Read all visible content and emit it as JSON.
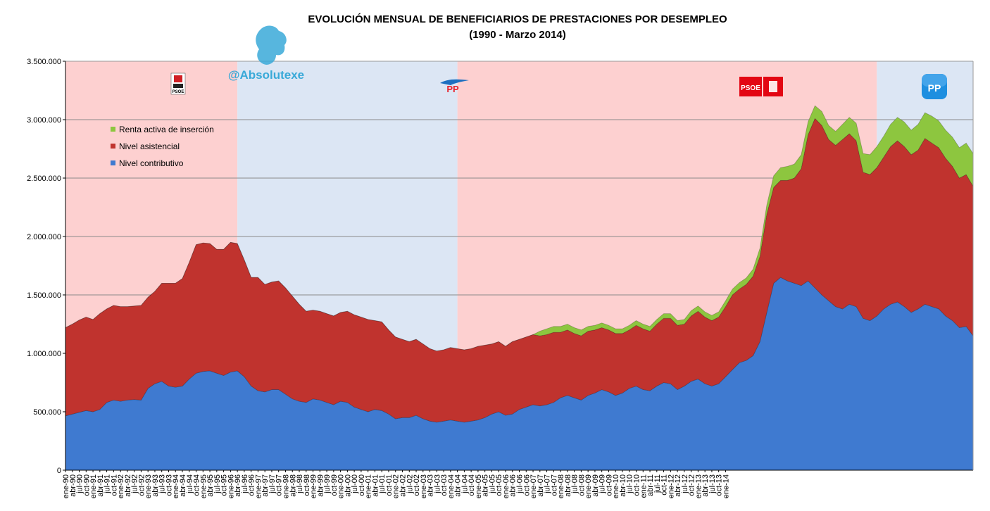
{
  "chart_data": {
    "type": "area",
    "title": "EVOLUCIÓN MENSUAL DE BENEFICIARIOS DE PRESTACIONES POR DESEMPLEO",
    "subtitle": "(1990 - Marzo 2014)",
    "stacked": true,
    "ylim": [
      0,
      3500000
    ],
    "yticks": [
      0,
      500000,
      1000000,
      1500000,
      2000000,
      2500000,
      3000000,
      3500000
    ],
    "ytick_labels": [
      "0",
      "500.000",
      "1.000.000",
      "1.500.000",
      "2.000.000",
      "2.500.000",
      "3.000.000",
      "3.500.000"
    ],
    "grid": "horizontal",
    "legend_position": "top-left",
    "x_start": "ene-90",
    "x_end": "mar-14",
    "x_tick_labels": [
      "ene-90",
      "abr-90",
      "jul-90",
      "oct-90",
      "ene-91",
      "abr-91",
      "jul-91",
      "oct-91",
      "ene-92",
      "abr-92",
      "jul-92",
      "oct-92",
      "ene-93",
      "abr-93",
      "jul-93",
      "oct-93",
      "ene-94",
      "abr-94",
      "jul-94",
      "oct-94",
      "ene-95",
      "abr-95",
      "jul-95",
      "oct-95",
      "ene-96",
      "abr-96",
      "jul-96",
      "oct-96",
      "ene-97",
      "abr-97",
      "jul-97",
      "oct-97",
      "ene-98",
      "abr-98",
      "jul-98",
      "oct-98",
      "ene-99",
      "abr-99",
      "jul-99",
      "oct-99",
      "ene-00",
      "abr-00",
      "jul-00",
      "oct-00",
      "ene-01",
      "abr-01",
      "jul-01",
      "oct-01",
      "ene-02",
      "abr-02",
      "jul-02",
      "oct-02",
      "ene-03",
      "abr-03",
      "jul-03",
      "oct-03",
      "ene-04",
      "abr-04",
      "jul-04",
      "oct-04",
      "ene-05",
      "abr-05",
      "jul-05",
      "oct-05",
      "ene-06",
      "abr-06",
      "jul-06",
      "oct-06",
      "ene-07",
      "abr-07",
      "jul-07",
      "oct-07",
      "ene-08",
      "abr-08",
      "jul-08",
      "oct-08",
      "ene-09",
      "abr-09",
      "jul-09",
      "oct-09",
      "ene-10",
      "abr-10",
      "jul-10",
      "oct-10",
      "ene-11",
      "abr-11",
      "jul-11",
      "oct-11",
      "ene-12",
      "abr-12",
      "jul-12",
      "oct-12",
      "ene-13",
      "abr-13",
      "jul-13",
      "oct-13",
      "ene-14"
    ],
    "series": [
      {
        "name": "Nivel contributivo",
        "color": "#3f7ad0",
        "values": [
          465000,
          480000,
          495000,
          510000,
          500000,
          520000,
          580000,
          600000,
          590000,
          600000,
          605000,
          600000,
          700000,
          740000,
          760000,
          720000,
          710000,
          720000,
          780000,
          830000,
          845000,
          850000,
          830000,
          810000,
          840000,
          850000,
          800000,
          720000,
          680000,
          670000,
          690000,
          690000,
          650000,
          610000,
          590000,
          580000,
          610000,
          600000,
          580000,
          560000,
          590000,
          580000,
          540000,
          520000,
          500000,
          520000,
          510000,
          480000,
          440000,
          450000,
          450000,
          470000,
          440000,
          420000,
          410000,
          420000,
          430000,
          420000,
          410000,
          420000,
          430000,
          450000,
          480000,
          500000,
          470000,
          480000,
          520000,
          540000,
          560000,
          550000,
          560000,
          580000,
          620000,
          640000,
          620000,
          600000,
          640000,
          660000,
          690000,
          670000,
          640000,
          660000,
          700000,
          720000,
          690000,
          680000,
          720000,
          750000,
          740000,
          690000,
          720000,
          760000,
          780000,
          740000,
          720000,
          740000,
          800000,
          860000,
          920000,
          940000,
          980000,
          1100000,
          1350000,
          1600000,
          1650000,
          1620000,
          1600000,
          1580000,
          1620000,
          1560000,
          1500000,
          1450000,
          1400000,
          1380000,
          1420000,
          1400000,
          1300000,
          1280000,
          1320000,
          1380000,
          1420000,
          1440000,
          1400000,
          1350000,
          1380000,
          1420000,
          1400000,
          1380000,
          1320000,
          1280000,
          1220000,
          1230000,
          1150000
        ],
        "x_index": [
          0,
          3,
          6,
          9,
          12,
          15,
          18,
          21,
          24,
          27,
          30,
          33,
          36,
          39,
          42,
          45,
          48,
          51,
          54,
          57,
          60,
          63,
          66,
          69,
          72,
          75,
          78,
          81,
          84,
          87,
          90,
          93,
          96,
          99,
          102,
          105,
          108,
          111,
          114,
          117,
          120,
          123,
          126,
          129,
          132,
          135,
          138,
          141,
          144,
          147,
          150,
          153,
          156,
          159,
          162,
          165,
          168,
          171,
          174,
          177,
          180,
          183,
          186,
          189,
          192,
          195,
          198,
          201,
          204,
          207,
          210,
          213,
          216,
          219,
          222,
          225,
          228,
          231,
          234,
          237,
          240,
          243,
          246,
          249,
          252,
          255,
          258,
          261,
          264,
          267,
          270,
          273,
          276,
          279,
          282,
          285,
          288,
          291,
          294,
          297,
          300,
          303,
          306,
          309,
          312,
          315,
          318,
          321,
          324,
          327,
          330,
          333,
          336,
          339,
          342,
          345,
          348,
          351,
          354,
          357,
          360,
          363,
          366,
          369,
          372,
          375,
          378,
          381,
          384,
          387,
          390,
          393,
          396
        ]
      },
      {
        "name": "Nivel asistencial",
        "color": "#c0332e",
        "values": [
          755000,
          770000,
          790000,
          800000,
          790000,
          820000,
          800000,
          810000,
          810000,
          800000,
          800000,
          810000,
          780000,
          790000,
          840000,
          880000,
          890000,
          920000,
          1000000,
          1100000,
          1100000,
          1090000,
          1060000,
          1080000,
          1110000,
          1090000,
          1000000,
          930000,
          970000,
          920000,
          920000,
          930000,
          910000,
          880000,
          830000,
          780000,
          760000,
          760000,
          760000,
          760000,
          760000,
          780000,
          790000,
          790000,
          790000,
          760000,
          760000,
          720000,
          700000,
          670000,
          650000,
          650000,
          640000,
          620000,
          610000,
          610000,
          620000,
          620000,
          620000,
          620000,
          630000,
          620000,
          600000,
          600000,
          590000,
          620000,
          600000,
          600000,
          600000,
          600000,
          600000,
          600000,
          560000,
          560000,
          550000,
          550000,
          550000,
          540000,
          530000,
          530000,
          530000,
          510000,
          500000,
          520000,
          520000,
          510000,
          530000,
          550000,
          560000,
          550000,
          530000,
          560000,
          580000,
          570000,
          560000,
          570000,
          600000,
          640000,
          630000,
          650000,
          680000,
          730000,
          840000,
          820000,
          830000,
          860000,
          900000,
          1000000,
          1250000,
          1450000,
          1450000,
          1380000,
          1380000,
          1450000,
          1460000,
          1420000,
          1250000,
          1250000,
          1270000,
          1300000,
          1350000,
          1380000,
          1370000,
          1350000,
          1360000,
          1420000,
          1400000,
          1380000,
          1350000,
          1320000,
          1280000,
          1300000,
          1280000
        ],
        "x_index": [
          0,
          3,
          6,
          9,
          12,
          15,
          18,
          21,
          24,
          27,
          30,
          33,
          36,
          39,
          42,
          45,
          48,
          51,
          54,
          57,
          60,
          63,
          66,
          69,
          72,
          75,
          78,
          81,
          84,
          87,
          90,
          93,
          96,
          99,
          102,
          105,
          108,
          111,
          114,
          117,
          120,
          123,
          126,
          129,
          132,
          135,
          138,
          141,
          144,
          147,
          150,
          153,
          156,
          159,
          162,
          165,
          168,
          171,
          174,
          177,
          180,
          183,
          186,
          189,
          192,
          195,
          198,
          201,
          204,
          207,
          210,
          213,
          216,
          219,
          222,
          225,
          228,
          231,
          234,
          237,
          240,
          243,
          246,
          249,
          252,
          255,
          258,
          261,
          264,
          267,
          270,
          273,
          276,
          279,
          282,
          285,
          288,
          291,
          294,
          297,
          300,
          303,
          306,
          309,
          312,
          315,
          318,
          321,
          324,
          327,
          330,
          333,
          336,
          339,
          342,
          345,
          348,
          351,
          354,
          357,
          360,
          363,
          366,
          369,
          372,
          375,
          378,
          381,
          384,
          387,
          390,
          393,
          396
        ]
      },
      {
        "name": "Renta activa de inserción",
        "color": "#8dc63f",
        "values": [
          0,
          0,
          0,
          0,
          0,
          0,
          0,
          0,
          0,
          0,
          0,
          0,
          0,
          0,
          0,
          0,
          0,
          0,
          0,
          0,
          0,
          0,
          0,
          0,
          0,
          0,
          0,
          0,
          0,
          0,
          0,
          0,
          0,
          0,
          0,
          0,
          0,
          0,
          0,
          0,
          0,
          0,
          0,
          0,
          0,
          0,
          0,
          0,
          0,
          0,
          0,
          0,
          0,
          0,
          0,
          0,
          0,
          0,
          0,
          0,
          0,
          0,
          0,
          0,
          0,
          0,
          0,
          0,
          0,
          40000,
          50000,
          50000,
          50000,
          50000,
          50000,
          50000,
          40000,
          40000,
          40000,
          40000,
          40000,
          40000,
          40000,
          40000,
          40000,
          40000,
          40000,
          40000,
          40000,
          40000,
          40000,
          45000,
          45000,
          45000,
          45000,
          45000,
          50000,
          50000,
          55000,
          55000,
          60000,
          70000,
          80000,
          100000,
          110000,
          120000,
          120000,
          120000,
          110000,
          110000,
          120000,
          120000,
          120000,
          130000,
          140000,
          150000,
          160000,
          170000,
          180000,
          180000,
          190000,
          200000,
          210000,
          210000,
          220000,
          220000,
          230000,
          230000,
          240000,
          250000,
          260000,
          270000,
          280000
        ],
        "x_index": [
          0,
          3,
          6,
          9,
          12,
          15,
          18,
          21,
          24,
          27,
          30,
          33,
          36,
          39,
          42,
          45,
          48,
          51,
          54,
          57,
          60,
          63,
          66,
          69,
          72,
          75,
          78,
          81,
          84,
          87,
          90,
          93,
          96,
          99,
          102,
          105,
          108,
          111,
          114,
          117,
          120,
          123,
          126,
          129,
          132,
          135,
          138,
          141,
          144,
          147,
          150,
          153,
          156,
          159,
          162,
          165,
          168,
          171,
          174,
          177,
          180,
          183,
          186,
          189,
          192,
          195,
          198,
          201,
          204,
          207,
          210,
          213,
          216,
          219,
          222,
          225,
          228,
          231,
          234,
          237,
          240,
          243,
          246,
          249,
          252,
          255,
          258,
          261,
          264,
          267,
          270,
          273,
          276,
          279,
          282,
          285,
          288,
          291,
          294,
          297,
          300,
          303,
          306,
          309,
          312,
          315,
          318,
          321,
          324,
          327,
          330,
          333,
          336,
          339,
          342,
          345,
          348,
          351,
          354,
          357,
          360,
          363,
          366,
          369,
          372,
          375,
          378,
          381,
          384,
          387,
          390,
          393,
          396
        ]
      }
    ],
    "legend": [
      {
        "label": "Renta activa de inserción",
        "color": "#8dc63f"
      },
      {
        "label": "Nivel asistencial",
        "color": "#c0332e"
      },
      {
        "label": "Nivel contributivo",
        "color": "#3f7ad0"
      }
    ],
    "periods": [
      {
        "party": "PSOE",
        "from_index": 0,
        "to_index": 75,
        "color": "#fdd0d0"
      },
      {
        "party": "PP",
        "from_index": 75,
        "to_index": 171,
        "color": "#dce6f4"
      },
      {
        "party": "PSOE",
        "from_index": 171,
        "to_index": 354,
        "color": "#fdd0d0"
      },
      {
        "party": "PP",
        "from_index": 354,
        "to_index": 396,
        "color": "#dce6f4"
      }
    ]
  },
  "watermark": {
    "handle": "@Absolutexe"
  },
  "logos": [
    {
      "name": "psoe-logo-1",
      "text": "PSOE"
    },
    {
      "name": "pp-logo-1",
      "text": "PP"
    },
    {
      "name": "psoe-logo-2",
      "text": "PSOE"
    },
    {
      "name": "pp-logo-2",
      "text": "PP"
    }
  ]
}
